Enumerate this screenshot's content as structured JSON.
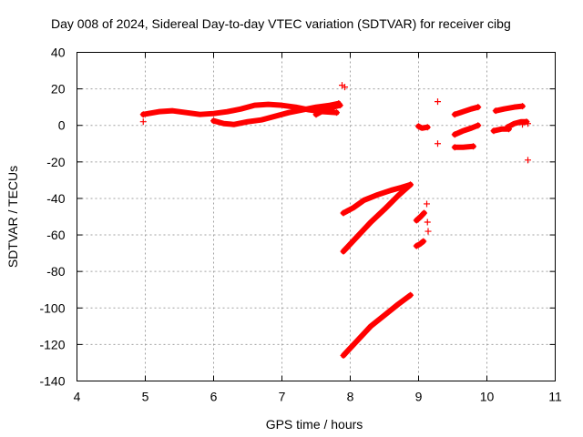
{
  "chart_data": {
    "type": "scatter",
    "title": "Day 008 of 2024, Sidereal Day-to-day VTEC variation (SDTVAR) for receiver cibg",
    "xlabel": "GPS time / hours",
    "ylabel": "SDTVAR / TECUs",
    "xlim": [
      4,
      11
    ],
    "ylim": [
      -140,
      40
    ],
    "xticks": [
      4,
      5,
      6,
      7,
      8,
      9,
      10,
      11
    ],
    "yticks": [
      -140,
      -120,
      -100,
      -80,
      -60,
      -40,
      -20,
      0,
      20,
      40
    ],
    "xtick_labels": [
      "4",
      "5",
      "6",
      "7",
      "8",
      "9",
      "10",
      "11"
    ],
    "ytick_labels": [
      "-140",
      "-120",
      "-100",
      "-80",
      "-60",
      "-40",
      "-20",
      "0",
      "20",
      "40"
    ],
    "grid": true,
    "marker": "+",
    "series": [
      {
        "color": "#ff0000",
        "segments": [
          [
            [
              4.97,
              6
            ],
            [
              5.2,
              7.5
            ],
            [
              5.4,
              8
            ],
            [
              5.6,
              7
            ],
            [
              5.8,
              6
            ],
            [
              6.0,
              6.5
            ],
            [
              6.2,
              7.5
            ],
            [
              6.4,
              9
            ],
            [
              6.6,
              11
            ],
            [
              6.8,
              11.5
            ],
            [
              7.0,
              11
            ],
            [
              7.2,
              10
            ],
            [
              7.4,
              8.5
            ],
            [
              7.6,
              7.5
            ],
            [
              7.8,
              7
            ]
          ],
          [
            [
              6.0,
              2.5
            ],
            [
              6.15,
              1
            ],
            [
              6.3,
              0.5
            ],
            [
              6.5,
              2
            ],
            [
              6.7,
              3
            ],
            [
              6.9,
              5
            ],
            [
              7.1,
              7
            ],
            [
              7.3,
              8.5
            ],
            [
              7.5,
              10
            ],
            [
              7.7,
              11
            ],
            [
              7.83,
              12
            ]
          ],
          [
            [
              7.5,
              6
            ],
            [
              7.6,
              8
            ],
            [
              7.7,
              9.5
            ],
            [
              7.85,
              11
            ]
          ],
          [
            [
              7.9,
              -48
            ],
            [
              8.05,
              -45
            ],
            [
              8.2,
              -41
            ],
            [
              8.4,
              -38
            ],
            [
              8.6,
              -35.5
            ],
            [
              8.75,
              -34
            ],
            [
              8.88,
              -32.5
            ]
          ],
          [
            [
              7.9,
              -69
            ],
            [
              8.1,
              -61
            ],
            [
              8.3,
              -53
            ],
            [
              8.5,
              -46
            ],
            [
              8.7,
              -38.5
            ],
            [
              8.88,
              -32.5
            ]
          ],
          [
            [
              7.9,
              -126
            ],
            [
              8.1,
              -118
            ],
            [
              8.3,
              -110
            ],
            [
              8.5,
              -104
            ],
            [
              8.7,
              -98
            ],
            [
              8.88,
              -93
            ]
          ],
          [
            [
              8.97,
              -66
            ],
            [
              9.02,
              -65
            ],
            [
              9.07,
              -63.5
            ]
          ],
          [
            [
              8.97,
              -52
            ],
            [
              9.03,
              -50
            ],
            [
              9.08,
              -48
            ]
          ],
          [
            [
              9.0,
              -0.5
            ],
            [
              9.05,
              -1.5
            ],
            [
              9.13,
              -1
            ]
          ],
          [
            [
              9.53,
              6
            ],
            [
              9.65,
              7.5
            ],
            [
              9.77,
              9
            ],
            [
              9.87,
              10
            ]
          ],
          [
            [
              9.53,
              -5
            ],
            [
              9.65,
              -3
            ],
            [
              9.77,
              -1.5
            ],
            [
              9.87,
              0
            ]
          ],
          [
            [
              9.53,
              -12
            ],
            [
              9.65,
              -12
            ],
            [
              9.8,
              -11.5
            ]
          ],
          [
            [
              10.13,
              8
            ],
            [
              10.25,
              9
            ],
            [
              10.4,
              10
            ],
            [
              10.52,
              10.5
            ]
          ],
          [
            [
              10.1,
              -3
            ],
            [
              10.22,
              -2
            ],
            [
              10.32,
              -2
            ]
          ],
          [
            [
              10.3,
              -1
            ],
            [
              10.4,
              1
            ],
            [
              10.5,
              2
            ],
            [
              10.58,
              2
            ]
          ]
        ],
        "points": [
          [
            4.97,
            2
          ],
          [
            7.88,
            22
          ],
          [
            7.92,
            21
          ],
          [
            9.28,
            13
          ],
          [
            9.28,
            -10
          ],
          [
            9.12,
            -43
          ],
          [
            9.13,
            -53
          ],
          [
            9.14,
            -58
          ],
          [
            10.52,
            0.5
          ],
          [
            10.6,
            1
          ],
          [
            10.6,
            -19
          ]
        ]
      }
    ]
  }
}
